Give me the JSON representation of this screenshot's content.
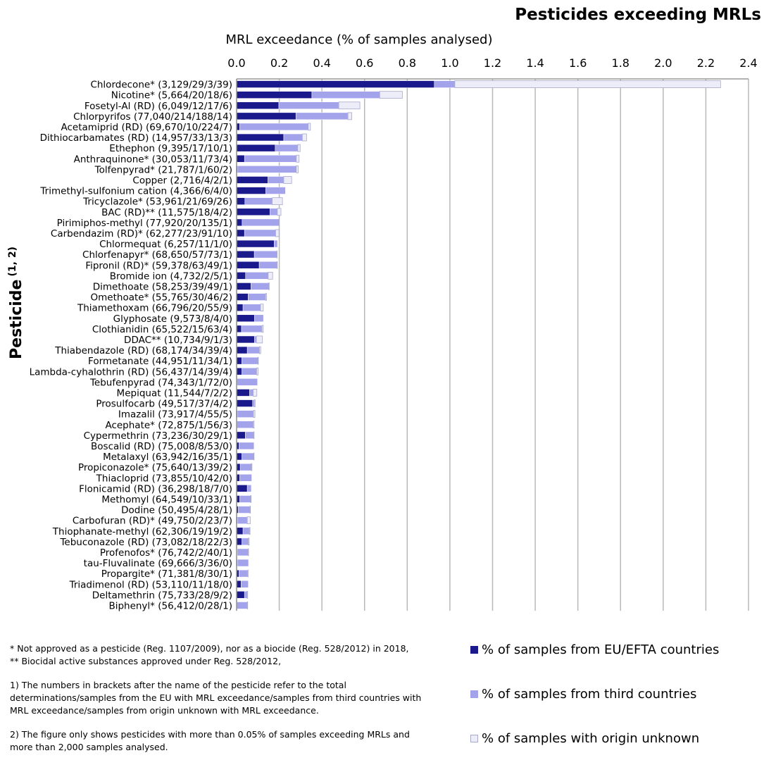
{
  "title": "Pesticides exceeding MRLs",
  "colors": {
    "eu": "#1a1a8c",
    "third": "#a3a3ec",
    "unknown": "#ededfa",
    "unknown_border": "#a8a8c8",
    "grid": "#b8b8b8"
  },
  "legend": [
    {
      "key": "eu",
      "label": "% of samples from EU/EFTA countries"
    },
    {
      "key": "third",
      "label": "% of samples from third countries"
    },
    {
      "key": "unknown",
      "label": "% of samples with origin unknown"
    }
  ],
  "notes": {
    "line1": "* Not approved as a pesticide (Reg. 1107/2009), nor as a biocide (Reg. 528/2012) in 2018,",
    "line2": "** Biocidal active substances approved under Reg. 528/2012,",
    "note1": "1) The numbers in brackets after the name of the pesticide refer to the total determinations/samples from the EU with MRL exceedance/samples from third countries with MRL exceedance/samples from origin unknown with MRL exceedance.",
    "note2": "2) The figure only shows pesticides with more than 0.05% of samples exceeding MRLs and more than 2,000 samples analysed."
  },
  "chart_data": {
    "type": "bar",
    "orientation": "horizontal",
    "stacked": true,
    "xlabel": "MRL exceedance (% of samples analysed)",
    "ylabel": "Pesticide",
    "ylabel_superscript": "(1, 2)",
    "xlim": [
      0,
      2.4
    ],
    "xticks": [
      "0.0",
      "0.2",
      "0.4",
      "0.6",
      "0.8",
      "1.0",
      "1.2",
      "1.4",
      "1.6",
      "1.8",
      "2.0",
      "2.2",
      "2.4"
    ],
    "grid": true,
    "legend_position": "bottom-right",
    "categories": [
      "Chlordecone* (3,129/29/3/39)",
      "Nicotine* (5,664/20/18/6)",
      "Fosetyl-Al (RD) (6,049/12/17/6)",
      "Chlorpyrifos (77,040/214/188/14)",
      "Acetamiprid (RD) (69,670/10/224/7)",
      "Dithiocarbamates (RD) (14,957/33/13/3)",
      "Ethephon (9,395/17/10/1)",
      "Anthraquinone* (30,053/11/73/4)",
      "Tolfenpyrad* (21,787/1/60/2)",
      "Copper (2,716/4/2/1)",
      "Trimethyl-sulfonium cation (4,366/6/4/0)",
      "Tricyclazole* (53,961/21/69/26)",
      "BAC (RD)** (11,575/18/4/2)",
      "Pirimiphos-methyl (77,920/20/135/1)",
      "Carbendazim (RD)* (62,277/23/91/10)",
      "Chlormequat (6,257/11/1/0)",
      "Chlorfenapyr* (68,650/57/73/1)",
      "Fipronil (RD)* (59,378/63/49/1)",
      "Bromide ion (4,732/2/5/1)",
      "Dimethoate (58,253/39/49/1)",
      "Omethoate* (55,765/30/46/2)",
      "Thiamethoxam (66,796/20/55/9)",
      "Glyphosate (9,573/8/4/0)",
      "Clothianidin (65,522/15/63/4)",
      "DDAC** (10,734/9/1/3)",
      "Thiabendazole (RD) (68,174/34/39/4)",
      "Formetanate (44,951/11/34/1)",
      "Lambda-cyhalothrin (RD) (56,437/14/39/4)",
      "Tebufenpyrad (74,343/1/72/0)",
      "Mepiquat (11,544/7/2/2)",
      "Prosulfocarb (49,517/37/4/2)",
      "Imazalil (73,917/4/55/5)",
      "Acephate* (72,875/1/56/3)",
      "Cypermethrin (73,236/30/29/1)",
      "Boscalid (RD) (75,008/8/53/0)",
      "Metalaxyl (63,942/16/35/1)",
      "Propiconazole* (75,640/13/39/2)",
      "Thiacloprid (73,855/10/42/0)",
      "Flonicamid (RD) (36,298/18/7/0)",
      "Methomyl (64,549/10/33/1)",
      "Dodine (50,495/4/28/1)",
      "Carbofuran (RD)* (49,750/2/23/7)",
      "Thiophanate-methyl (62,306/19/19/2)",
      "Tebuconazole (RD) (73,082/18/22/3)",
      "Profenofos* (76,742/2/40/1)",
      "tau-Fluvalinate (69,666/3/36/0)",
      "Propargite* (71,381/8/30/1)",
      "Triadimenol (RD) (53,110/11/18/0)",
      "Deltamethrin (75,733/28/9/2)",
      "Biphenyl* (56,412/0/28/1)"
    ],
    "series": [
      {
        "name": "% of samples from EU/EFTA countries",
        "key": "eu",
        "values": [
          0.927,
          0.353,
          0.198,
          0.278,
          0.014,
          0.221,
          0.181,
          0.037,
          0.005,
          0.147,
          0.137,
          0.039,
          0.156,
          0.026,
          0.037,
          0.176,
          0.083,
          0.106,
          0.042,
          0.067,
          0.054,
          0.03,
          0.084,
          0.023,
          0.084,
          0.05,
          0.024,
          0.025,
          0.001,
          0.061,
          0.075,
          0.005,
          0.001,
          0.041,
          0.011,
          0.025,
          0.017,
          0.014,
          0.05,
          0.015,
          0.008,
          0.004,
          0.03,
          0.025,
          0.003,
          0.004,
          0.011,
          0.021,
          0.037,
          0.0
        ]
      },
      {
        "name": "% of samples from third countries",
        "key": "third",
        "values": [
          0.096,
          0.318,
          0.281,
          0.244,
          0.322,
          0.087,
          0.106,
          0.243,
          0.275,
          0.074,
          0.092,
          0.128,
          0.035,
          0.173,
          0.146,
          0.016,
          0.106,
          0.083,
          0.106,
          0.084,
          0.082,
          0.082,
          0.042,
          0.096,
          0.009,
          0.057,
          0.076,
          0.069,
          0.097,
          0.017,
          0.008,
          0.074,
          0.077,
          0.04,
          0.071,
          0.055,
          0.052,
          0.057,
          0.019,
          0.051,
          0.055,
          0.046,
          0.03,
          0.03,
          0.052,
          0.052,
          0.042,
          0.034,
          0.012,
          0.05
        ]
      },
      {
        "name": "% of samples with origin unknown",
        "key": "unknown",
        "values": [
          1.246,
          0.106,
          0.099,
          0.018,
          0.01,
          0.02,
          0.011,
          0.013,
          0.009,
          0.037,
          0.0,
          0.048,
          0.017,
          0.001,
          0.016,
          0.0,
          0.001,
          0.002,
          0.021,
          0.002,
          0.004,
          0.013,
          0.0,
          0.006,
          0.028,
          0.006,
          0.002,
          0.007,
          0.0,
          0.017,
          0.004,
          0.007,
          0.004,
          0.001,
          0.0,
          0.002,
          0.003,
          0.0,
          0.0,
          0.002,
          0.002,
          0.014,
          0.003,
          0.004,
          0.001,
          0.0,
          0.001,
          0.0,
          0.003,
          0.002
        ]
      }
    ]
  }
}
